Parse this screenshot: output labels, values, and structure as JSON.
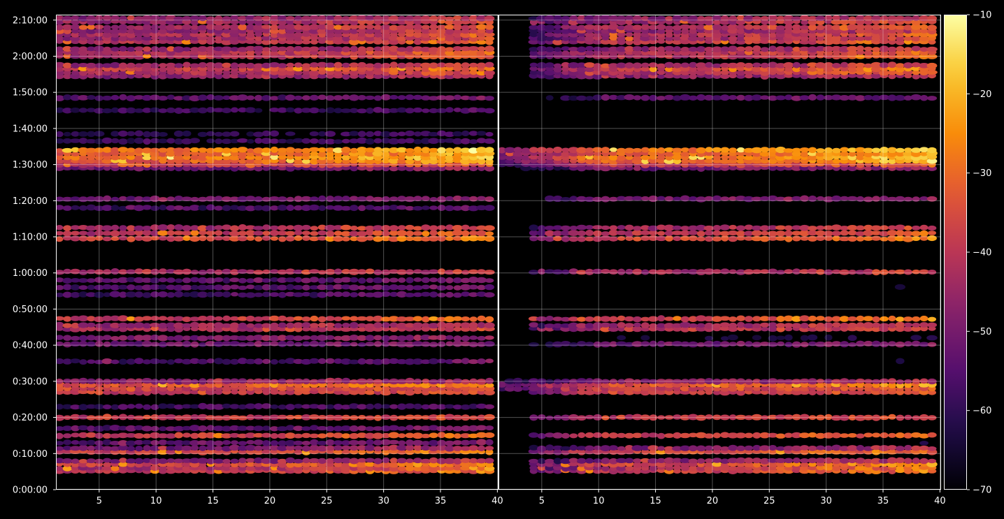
{
  "chart_data": {
    "type": "heatmap",
    "panels": [
      {
        "name": "",
        "x_ticks": [
          "5",
          "10",
          "15",
          "20",
          "25",
          "30",
          "35",
          "40"
        ],
        "x_tick_values": [
          5,
          10,
          15,
          20,
          25,
          30,
          35,
          40
        ],
        "xlim": [
          1.2,
          40.1
        ]
      },
      {
        "name": "",
        "x_ticks": [
          "5",
          "10",
          "15",
          "20",
          "25",
          "30",
          "35",
          "40"
        ],
        "x_tick_values": [
          5,
          10,
          15,
          20,
          25,
          30,
          35,
          40
        ],
        "xlim": [
          1.2,
          40.1
        ]
      }
    ],
    "y_ticks": [
      "0:00:00",
      "0:10:00",
      "0:20:00",
      "0:30:00",
      "0:40:00",
      "0:50:00",
      "1:00:00",
      "1:10:00",
      "1:20:00",
      "1:30:00",
      "1:40:00",
      "1:50:00",
      "2:00:00",
      "2:10:00"
    ],
    "y_tick_values_min": [
      0,
      10,
      20,
      30,
      40,
      50,
      60,
      70,
      80,
      90,
      100,
      110,
      120,
      130
    ],
    "ylim_min": [
      0,
      131.5
    ],
    "colorbar": {
      "colormap": "inferno",
      "range": [
        -70,
        -10
      ],
      "ticks": [
        "−70",
        "−60",
        "−50",
        "−40",
        "−30",
        "−20",
        "−10"
      ],
      "tick_values": [
        -70,
        -60,
        -50,
        -40,
        -30,
        -20,
        -10
      ]
    },
    "grid": true,
    "xlabel": "",
    "ylabel": "",
    "title": "",
    "bands": [
      {
        "t": 5.2,
        "level": -42,
        "peak": -25,
        "right": true
      },
      {
        "t": 6.0,
        "level": -44,
        "peak": -25,
        "right": true
      },
      {
        "t": 7.0,
        "level": -38,
        "peak": -22,
        "right": true
      },
      {
        "t": 8.0,
        "level": -50,
        "peak": -38,
        "right": true
      },
      {
        "t": 10.5,
        "level": -38,
        "peak": -25,
        "right": true
      },
      {
        "t": 11.5,
        "level": -52,
        "peak": -40,
        "right": true
      },
      {
        "t": 13.0,
        "level": -55,
        "peak": -48,
        "right": false
      },
      {
        "t": 15.0,
        "level": -40,
        "peak": -28,
        "right": true
      },
      {
        "t": 17.0,
        "level": -55,
        "peak": -48,
        "right": false
      },
      {
        "t": 20.0,
        "level": -40,
        "peak": -35,
        "right": true
      },
      {
        "t": 23.0,
        "level": -58,
        "peak": -55,
        "right": false
      },
      {
        "t": 27.0,
        "level": -40,
        "peak": -33,
        "right": true
      },
      {
        "t": 28.0,
        "level": -38,
        "peak": -32,
        "right": true
      },
      {
        "t": 29.0,
        "level": -35,
        "peak": -22,
        "right": true
      },
      {
        "t": 30.0,
        "level": -48,
        "peak": -40,
        "right": true
      },
      {
        "t": 35.5,
        "level": -58,
        "peak": -48,
        "right": false
      },
      {
        "t": 40.3,
        "level": -52,
        "peak": -48,
        "right": true
      },
      {
        "t": 42.0,
        "level": -50,
        "peak": -45,
        "right": false
      },
      {
        "t": 44.5,
        "level": -44,
        "peak": -35,
        "right": true
      },
      {
        "t": 45.5,
        "level": -46,
        "peak": -38,
        "right": true
      },
      {
        "t": 47.3,
        "level": -40,
        "peak": -25,
        "right": true
      },
      {
        "t": 54.0,
        "level": -58,
        "peak": -52,
        "right": false
      },
      {
        "t": 56.0,
        "level": -56,
        "peak": -50,
        "right": false
      },
      {
        "t": 58.0,
        "level": -55,
        "peak": -50,
        "right": false
      },
      {
        "t": 60.3,
        "level": -45,
        "peak": -35,
        "right": true
      },
      {
        "t": 69.5,
        "level": -38,
        "peak": -25,
        "right": true
      },
      {
        "t": 71.0,
        "level": -42,
        "peak": -28,
        "right": true
      },
      {
        "t": 72.5,
        "level": -45,
        "peak": -35,
        "right": true
      },
      {
        "t": 78.0,
        "level": -58,
        "peak": -52,
        "right": false
      },
      {
        "t": 80.5,
        "level": -52,
        "peak": -45,
        "right": true
      },
      {
        "t": 89.0,
        "level": -52,
        "peak": -45,
        "right": true
      },
      {
        "t": 90.0,
        "level": -40,
        "peak": -30,
        "right": true
      },
      {
        "t": 91.0,
        "level": -33,
        "peak": -18,
        "right": true
      },
      {
        "t": 92.0,
        "level": -30,
        "peak": -14,
        "right": true
      },
      {
        "t": 93.0,
        "level": -33,
        "peak": -18,
        "right": true
      },
      {
        "t": 94.0,
        "level": -30,
        "peak": -15,
        "right": true
      },
      {
        "t": 96.5,
        "level": -60,
        "peak": -55,
        "right": false
      },
      {
        "t": 98.5,
        "level": -62,
        "peak": -58,
        "right": false
      },
      {
        "t": 105.0,
        "level": -60,
        "peak": -55,
        "right": false
      },
      {
        "t": 108.5,
        "level": -55,
        "peak": -50,
        "right": true
      },
      {
        "t": 114.5,
        "level": -48,
        "peak": -40,
        "right": true
      },
      {
        "t": 115.5,
        "level": -44,
        "peak": -30,
        "right": true
      },
      {
        "t": 116.5,
        "level": -40,
        "peak": -25,
        "right": true
      },
      {
        "t": 117.5,
        "level": -46,
        "peak": -35,
        "right": true
      },
      {
        "t": 120.0,
        "level": -44,
        "peak": -28,
        "right": true
      },
      {
        "t": 121.0,
        "level": -42,
        "peak": -30,
        "right": true
      },
      {
        "t": 122.0,
        "level": -48,
        "peak": -35,
        "right": true
      },
      {
        "t": 124.0,
        "level": -42,
        "peak": -28,
        "right": true
      },
      {
        "t": 125.0,
        "level": -46,
        "peak": -32,
        "right": true
      },
      {
        "t": 126.0,
        "level": -44,
        "peak": -30,
        "right": true
      },
      {
        "t": 127.0,
        "level": -48,
        "peak": -35,
        "right": true
      },
      {
        "t": 128.0,
        "level": -44,
        "peak": -30,
        "right": true
      },
      {
        "t": 129.5,
        "level": -46,
        "peak": -32,
        "right": true
      },
      {
        "t": 130.5,
        "level": -48,
        "peak": -38,
        "right": true
      }
    ]
  }
}
